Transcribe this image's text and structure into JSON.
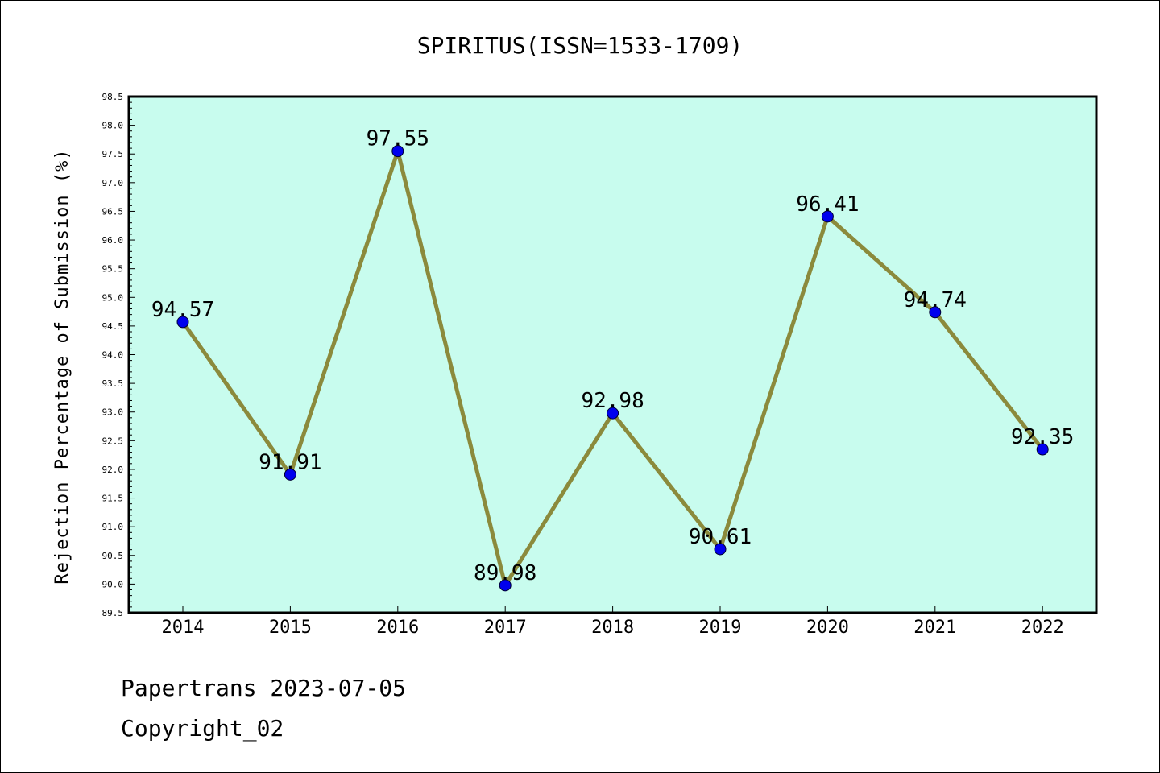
{
  "chart_data": {
    "type": "line",
    "title": "SPIRITUS(ISSN=1533-1709)",
    "xlabel": "",
    "ylabel": "Rejection Percentage of Submission (%)",
    "categories": [
      "2014",
      "2015",
      "2016",
      "2017",
      "2018",
      "2019",
      "2020",
      "2021",
      "2022"
    ],
    "series": [
      {
        "values": [
          94.57,
          91.91,
          97.55,
          89.98,
          92.98,
          90.61,
          96.41,
          94.74,
          92.35
        ],
        "line_color": "#8b8a3c",
        "marker_color": "#0000ee"
      }
    ],
    "data_labels": [
      "94.57",
      "91.91",
      "97.55",
      "89.98",
      "92.98",
      "90.61",
      "96.41",
      "94.74",
      "92.35"
    ],
    "ylim": [
      89.5,
      98.5
    ],
    "y_ticks": [
      "89.5",
      "90.0",
      "90.5",
      "91.0",
      "91.5",
      "92.0",
      "92.5",
      "93.0",
      "93.5",
      "94.0",
      "94.5",
      "95.0",
      "95.5",
      "96.0",
      "96.5",
      "97.0",
      "97.5",
      "98.0",
      "98.5"
    ],
    "plot_background": "#c8fcee",
    "grid": false,
    "legend": "none"
  },
  "footer": {
    "line1": "Papertrans 2023-07-05",
    "line2": "Copyright_02"
  }
}
